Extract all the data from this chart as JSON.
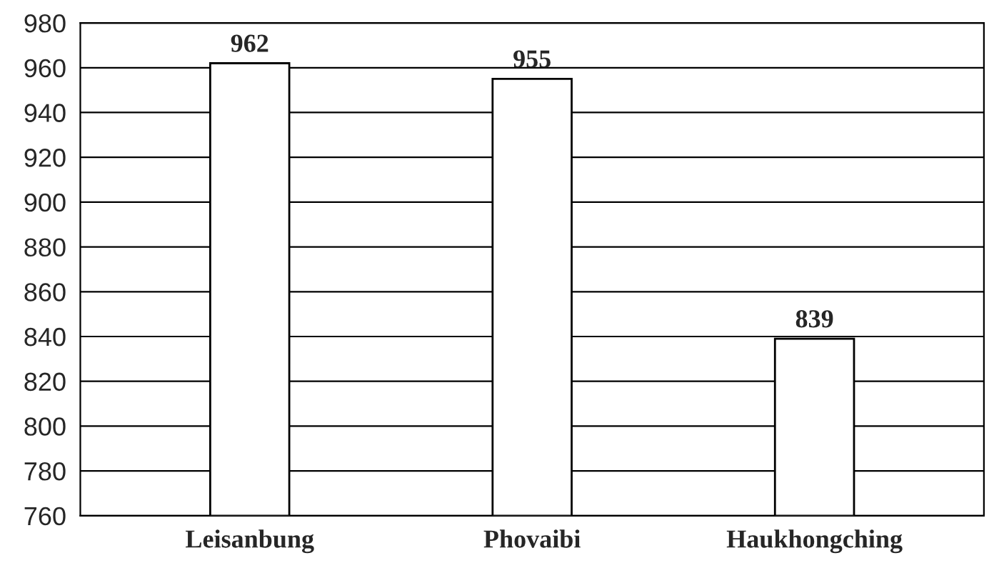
{
  "chart_data": {
    "type": "bar",
    "categories": [
      "Leisanbung",
      "Phovaibi",
      "Haukhongching"
    ],
    "values": [
      962,
      955,
      839
    ],
    "color": "#ffffff",
    "ylim": [
      760,
      980
    ],
    "yticks": [
      760,
      780,
      800,
      820,
      840,
      860,
      880,
      900,
      920,
      940,
      960,
      980
    ],
    "grid": "y",
    "data_labels": true,
    "legend": false
  }
}
